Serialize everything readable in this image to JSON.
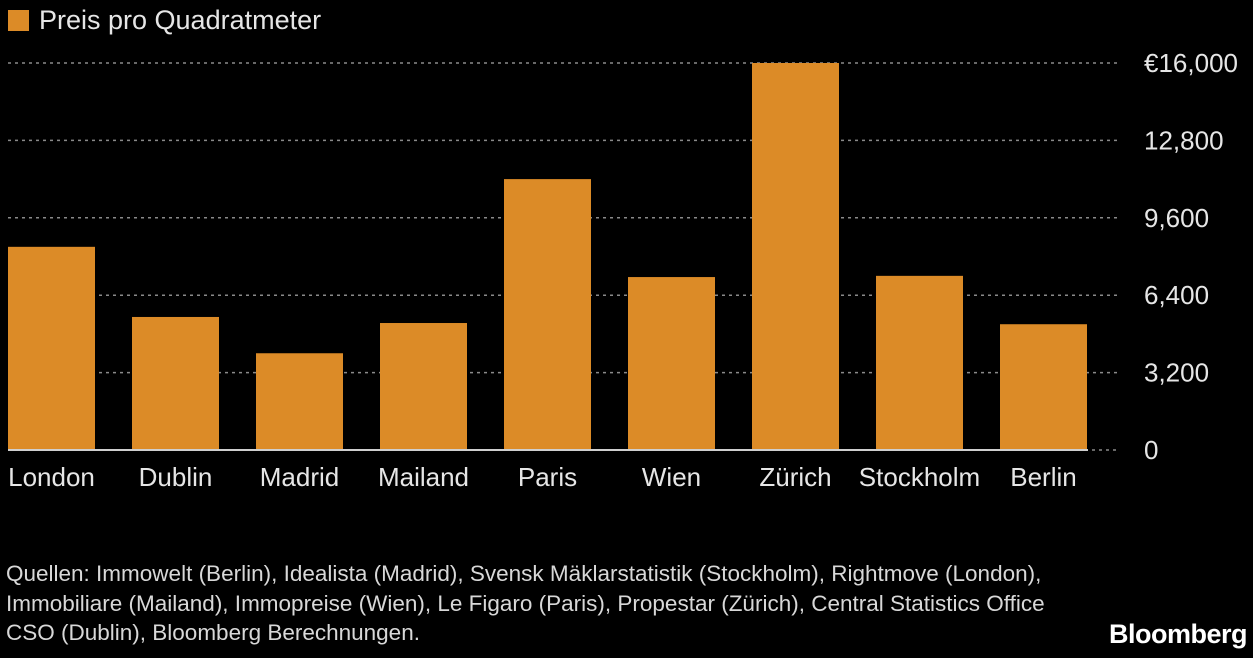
{
  "legend": {
    "label": "Preis pro Quadratmeter",
    "color": "#dc8b27"
  },
  "chart_data": {
    "type": "bar",
    "categories": [
      "London",
      "Dublin",
      "Madrid",
      "Mailand",
      "Paris",
      "Wien",
      "Zürich",
      "Stockholm",
      "Berlin"
    ],
    "series": [
      {
        "name": "Preis pro Quadratmeter",
        "values": [
          8400,
          5500,
          4000,
          5250,
          11200,
          7150,
          16000,
          7200,
          5200
        ],
        "color": "#dc8b27"
      }
    ],
    "yticks": [
      0,
      3200,
      6400,
      9600,
      12800,
      16000
    ],
    "ytick_labels": [
      "0",
      "3,200",
      "6,400",
      "9,600",
      "12,800",
      "€16,000"
    ],
    "ylim": [
      0,
      16000
    ],
    "grid": true,
    "title": "",
    "xlabel": "",
    "ylabel": ""
  },
  "source_text": "Quellen: Immowelt (Berlin), Idealista (Madrid), Svensk Mäklarstatistik (Stockholm), Rightmove (London), Immobiliare (Mailand), Immopreise (Wien), Le Figaro (Paris), Propestar (Zürich), Central Statistics Office CSO (Dublin), Bloomberg Berechnungen.",
  "brand": "Bloomberg",
  "colors": {
    "background": "#000000",
    "bar": "#dc8b27",
    "grid": "#8a8a8a",
    "text": "#e6e6e6"
  }
}
